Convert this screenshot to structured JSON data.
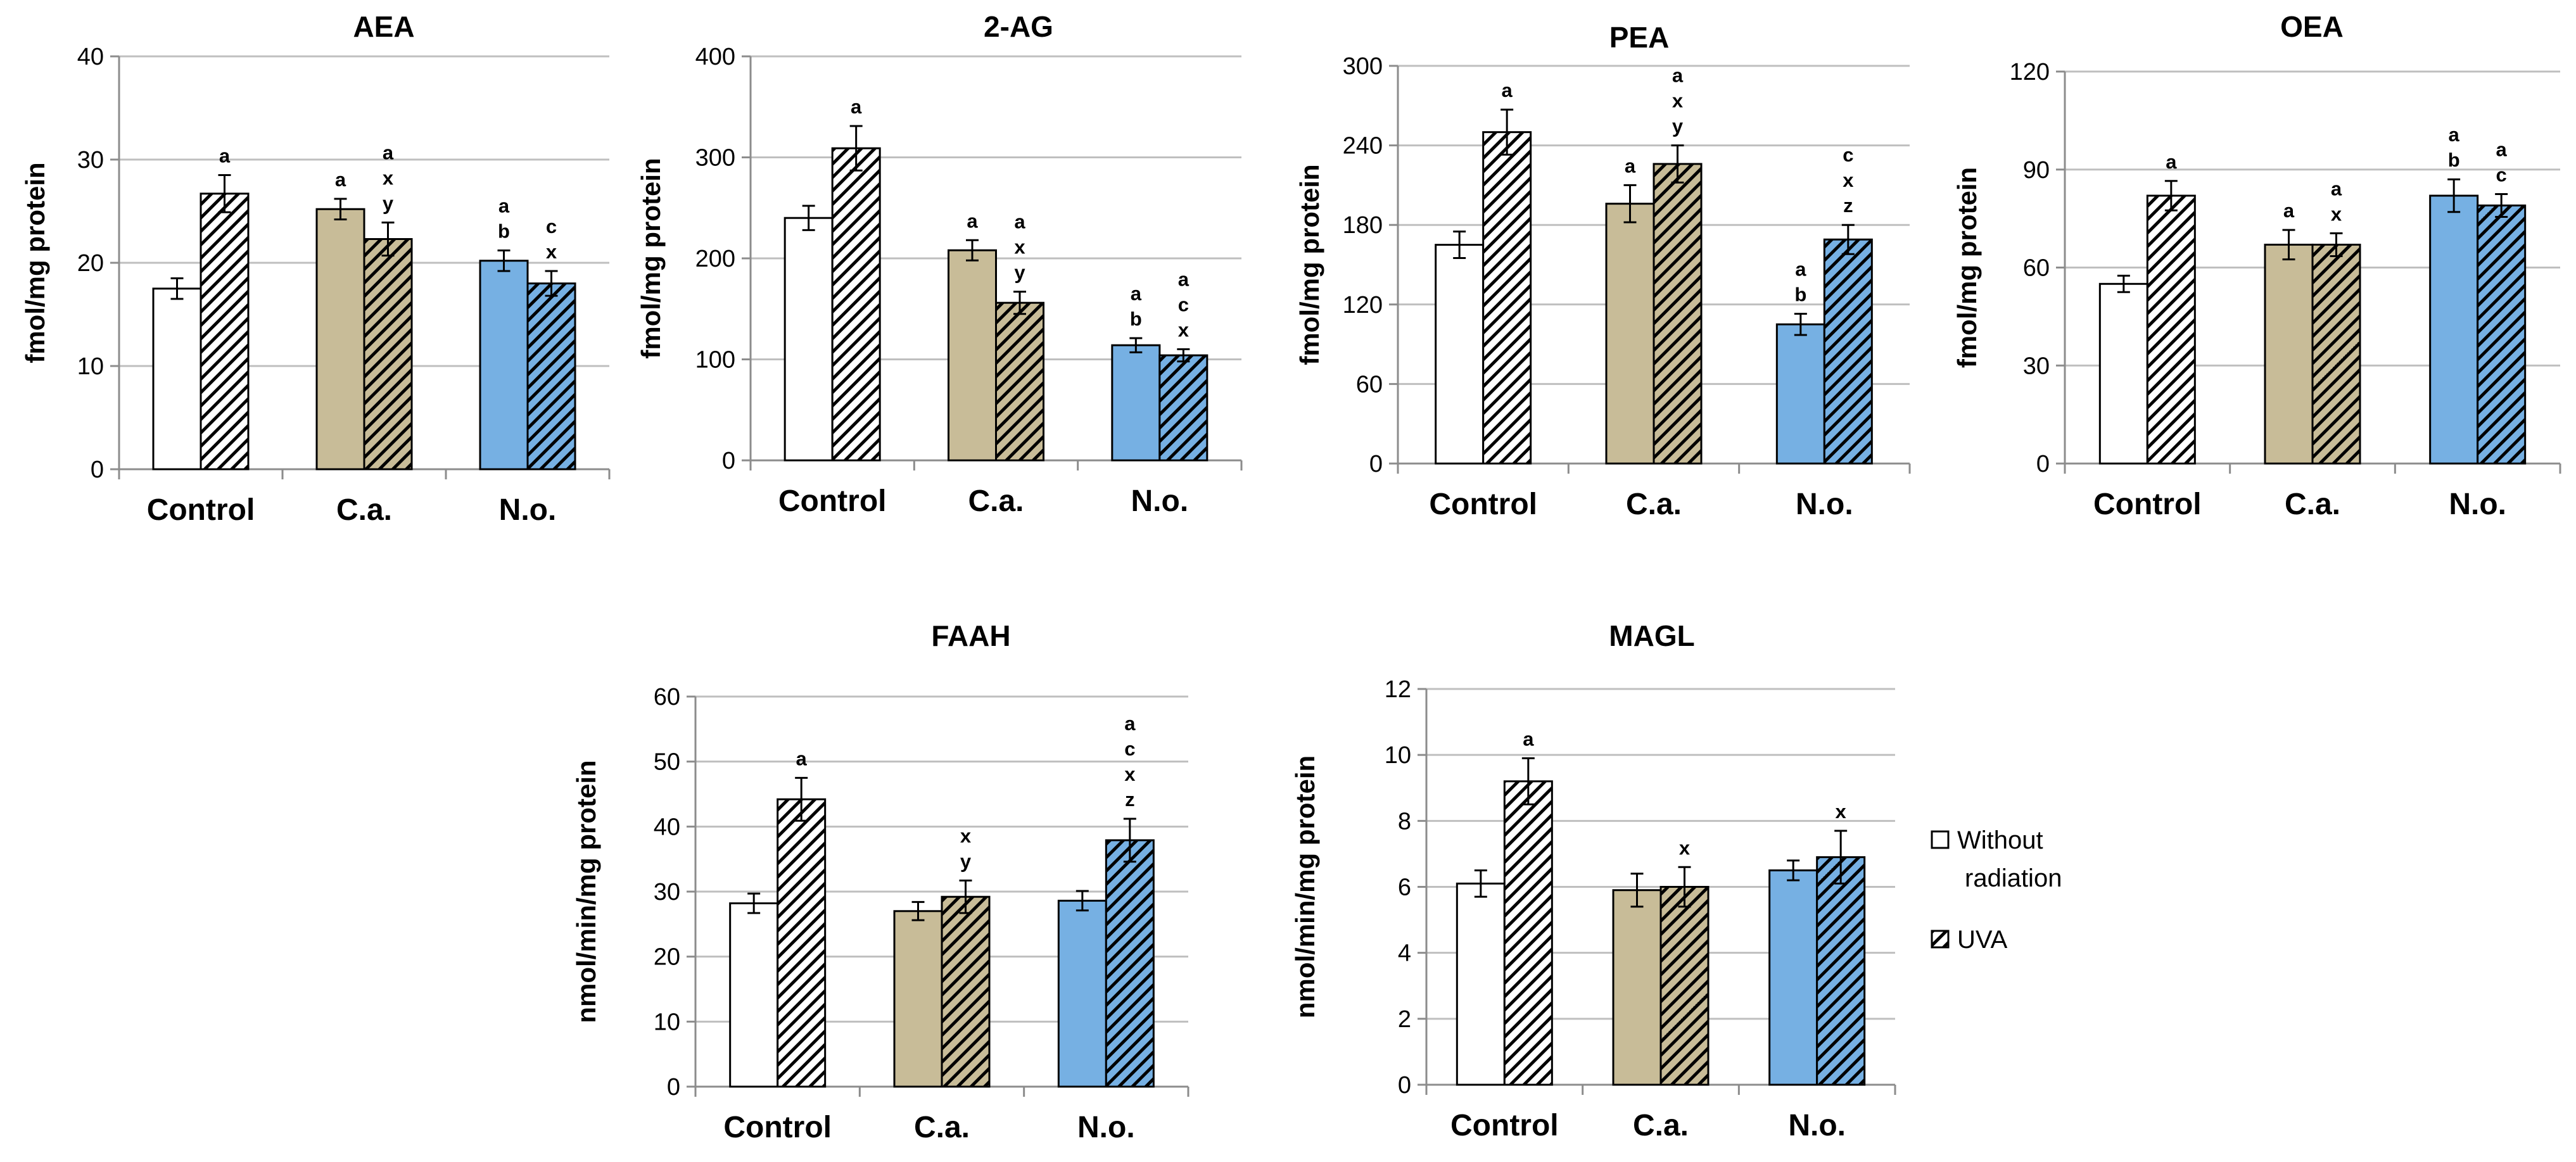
{
  "legend": {
    "items": [
      {
        "label_lines": [
          "Without",
          "radiation"
        ],
        "pattern": "plain"
      },
      {
        "label_lines": [
          "UVA"
        ],
        "pattern": "hatch"
      }
    ]
  },
  "colors": {
    "control": "#ffffff",
    "ca": "#c8bc98",
    "no": "#76b0e3",
    "grid": "#bfbfbf",
    "axis": "#8c8c8c",
    "bar_stroke": "#000000"
  },
  "chart_data": [
    {
      "type": "bar",
      "title": "AEA",
      "ylabel": "fmol/mg protein",
      "ylim": [
        0,
        40
      ],
      "yticks": [
        0,
        10,
        20,
        30,
        40
      ],
      "categories": [
        "Control",
        "C.a.",
        "N.o."
      ],
      "series": [
        {
          "name": "Without radiation",
          "values": [
            17.5,
            25.2,
            20.2
          ],
          "errors": [
            1.0,
            1.0,
            1.0
          ],
          "labels": [
            [],
            [
              "a"
            ],
            [
              "a",
              "b"
            ]
          ]
        },
        {
          "name": "UVA",
          "values": [
            26.7,
            22.3,
            18.0
          ],
          "errors": [
            1.8,
            1.6,
            1.2
          ],
          "labels": [
            [
              "a"
            ],
            [
              "a",
              "x",
              "y"
            ],
            [
              "c",
              "x"
            ]
          ]
        }
      ]
    },
    {
      "type": "bar",
      "title": "2-AG",
      "ylabel": "fmol/mg protein",
      "ylim": [
        0,
        400
      ],
      "yticks": [
        0,
        100,
        200,
        300,
        400
      ],
      "categories": [
        "Control",
        "C.a.",
        "N.o."
      ],
      "series": [
        {
          "name": "Without radiation",
          "values": [
            240,
            208,
            114
          ],
          "errors": [
            12,
            10,
            7
          ],
          "labels": [
            [],
            [
              "a"
            ],
            [
              "a",
              "b"
            ]
          ]
        },
        {
          "name": "UVA",
          "values": [
            309,
            156,
            104
          ],
          "errors": [
            22,
            11,
            6
          ],
          "labels": [
            [
              "a"
            ],
            [
              "a",
              "x",
              "y"
            ],
            [
              "a",
              "c",
              "x"
            ]
          ]
        }
      ]
    },
    {
      "type": "bar",
      "title": "PEA",
      "ylabel": "fmol/mg protein",
      "ylim": [
        0,
        300
      ],
      "yticks": [
        0,
        60,
        120,
        180,
        240,
        300
      ],
      "categories": [
        "Control",
        "C.a.",
        "N.o."
      ],
      "series": [
        {
          "name": "Without radiation",
          "values": [
            165,
            196,
            105
          ],
          "errors": [
            10,
            14,
            8
          ],
          "labels": [
            [],
            [
              "a"
            ],
            [
              "a",
              "b"
            ]
          ]
        },
        {
          "name": "UVA",
          "values": [
            250,
            226,
            169
          ],
          "errors": [
            17,
            14,
            11
          ],
          "labels": [
            [
              "a"
            ],
            [
              "a",
              "x",
              "y"
            ],
            [
              "c",
              "x",
              "z"
            ]
          ]
        }
      ]
    },
    {
      "type": "bar",
      "title": "OEA",
      "ylabel": "fmol/mg protein",
      "ylim": [
        0,
        120
      ],
      "yticks": [
        0,
        30,
        60,
        90,
        120
      ],
      "categories": [
        "Control",
        "C.a.",
        "N.o."
      ],
      "series": [
        {
          "name": "Without radiation",
          "values": [
            55,
            67,
            82
          ],
          "errors": [
            2.5,
            4.5,
            5
          ],
          "labels": [
            [],
            [
              "a"
            ],
            [
              "a",
              "b"
            ]
          ]
        },
        {
          "name": "UVA",
          "values": [
            82,
            67,
            79
          ],
          "errors": [
            4.5,
            3.5,
            3.5
          ],
          "labels": [
            [
              "a"
            ],
            [
              "a",
              "x"
            ],
            [
              "a",
              "c"
            ]
          ]
        }
      ]
    },
    {
      "type": "bar",
      "title": "FAAH",
      "ylabel": "nmol/min/mg protein",
      "ylim": [
        0,
        60
      ],
      "yticks": [
        0,
        10,
        20,
        30,
        40,
        50,
        60
      ],
      "categories": [
        "Control",
        "C.a.",
        "N.o."
      ],
      "series": [
        {
          "name": "Without radiation",
          "values": [
            28.2,
            27.0,
            28.6
          ],
          "errors": [
            1.5,
            1.4,
            1.5
          ],
          "labels": [
            [],
            [],
            []
          ]
        },
        {
          "name": "UVA",
          "values": [
            44.2,
            29.2,
            37.9
          ],
          "errors": [
            3.3,
            2.5,
            3.3
          ],
          "labels": [
            [
              "a"
            ],
            [
              "x",
              "y"
            ],
            [
              "a",
              "c",
              "x",
              "z"
            ]
          ]
        }
      ]
    },
    {
      "type": "bar",
      "title": "MAGL",
      "ylabel": "nmol/min/mg protein",
      "ylim": [
        0,
        12
      ],
      "yticks": [
        0,
        2,
        4,
        6,
        8,
        10,
        12
      ],
      "categories": [
        "Control",
        "C.a.",
        "N.o."
      ],
      "series": [
        {
          "name": "Without radiation",
          "values": [
            6.1,
            5.9,
            6.5
          ],
          "errors": [
            0.4,
            0.5,
            0.3
          ],
          "labels": [
            [],
            [],
            []
          ]
        },
        {
          "name": "UVA",
          "values": [
            9.2,
            6.0,
            6.9
          ],
          "errors": [
            0.7,
            0.6,
            0.8
          ],
          "labels": [
            [
              "a"
            ],
            [
              "x"
            ],
            [
              "x"
            ]
          ]
        }
      ]
    }
  ]
}
